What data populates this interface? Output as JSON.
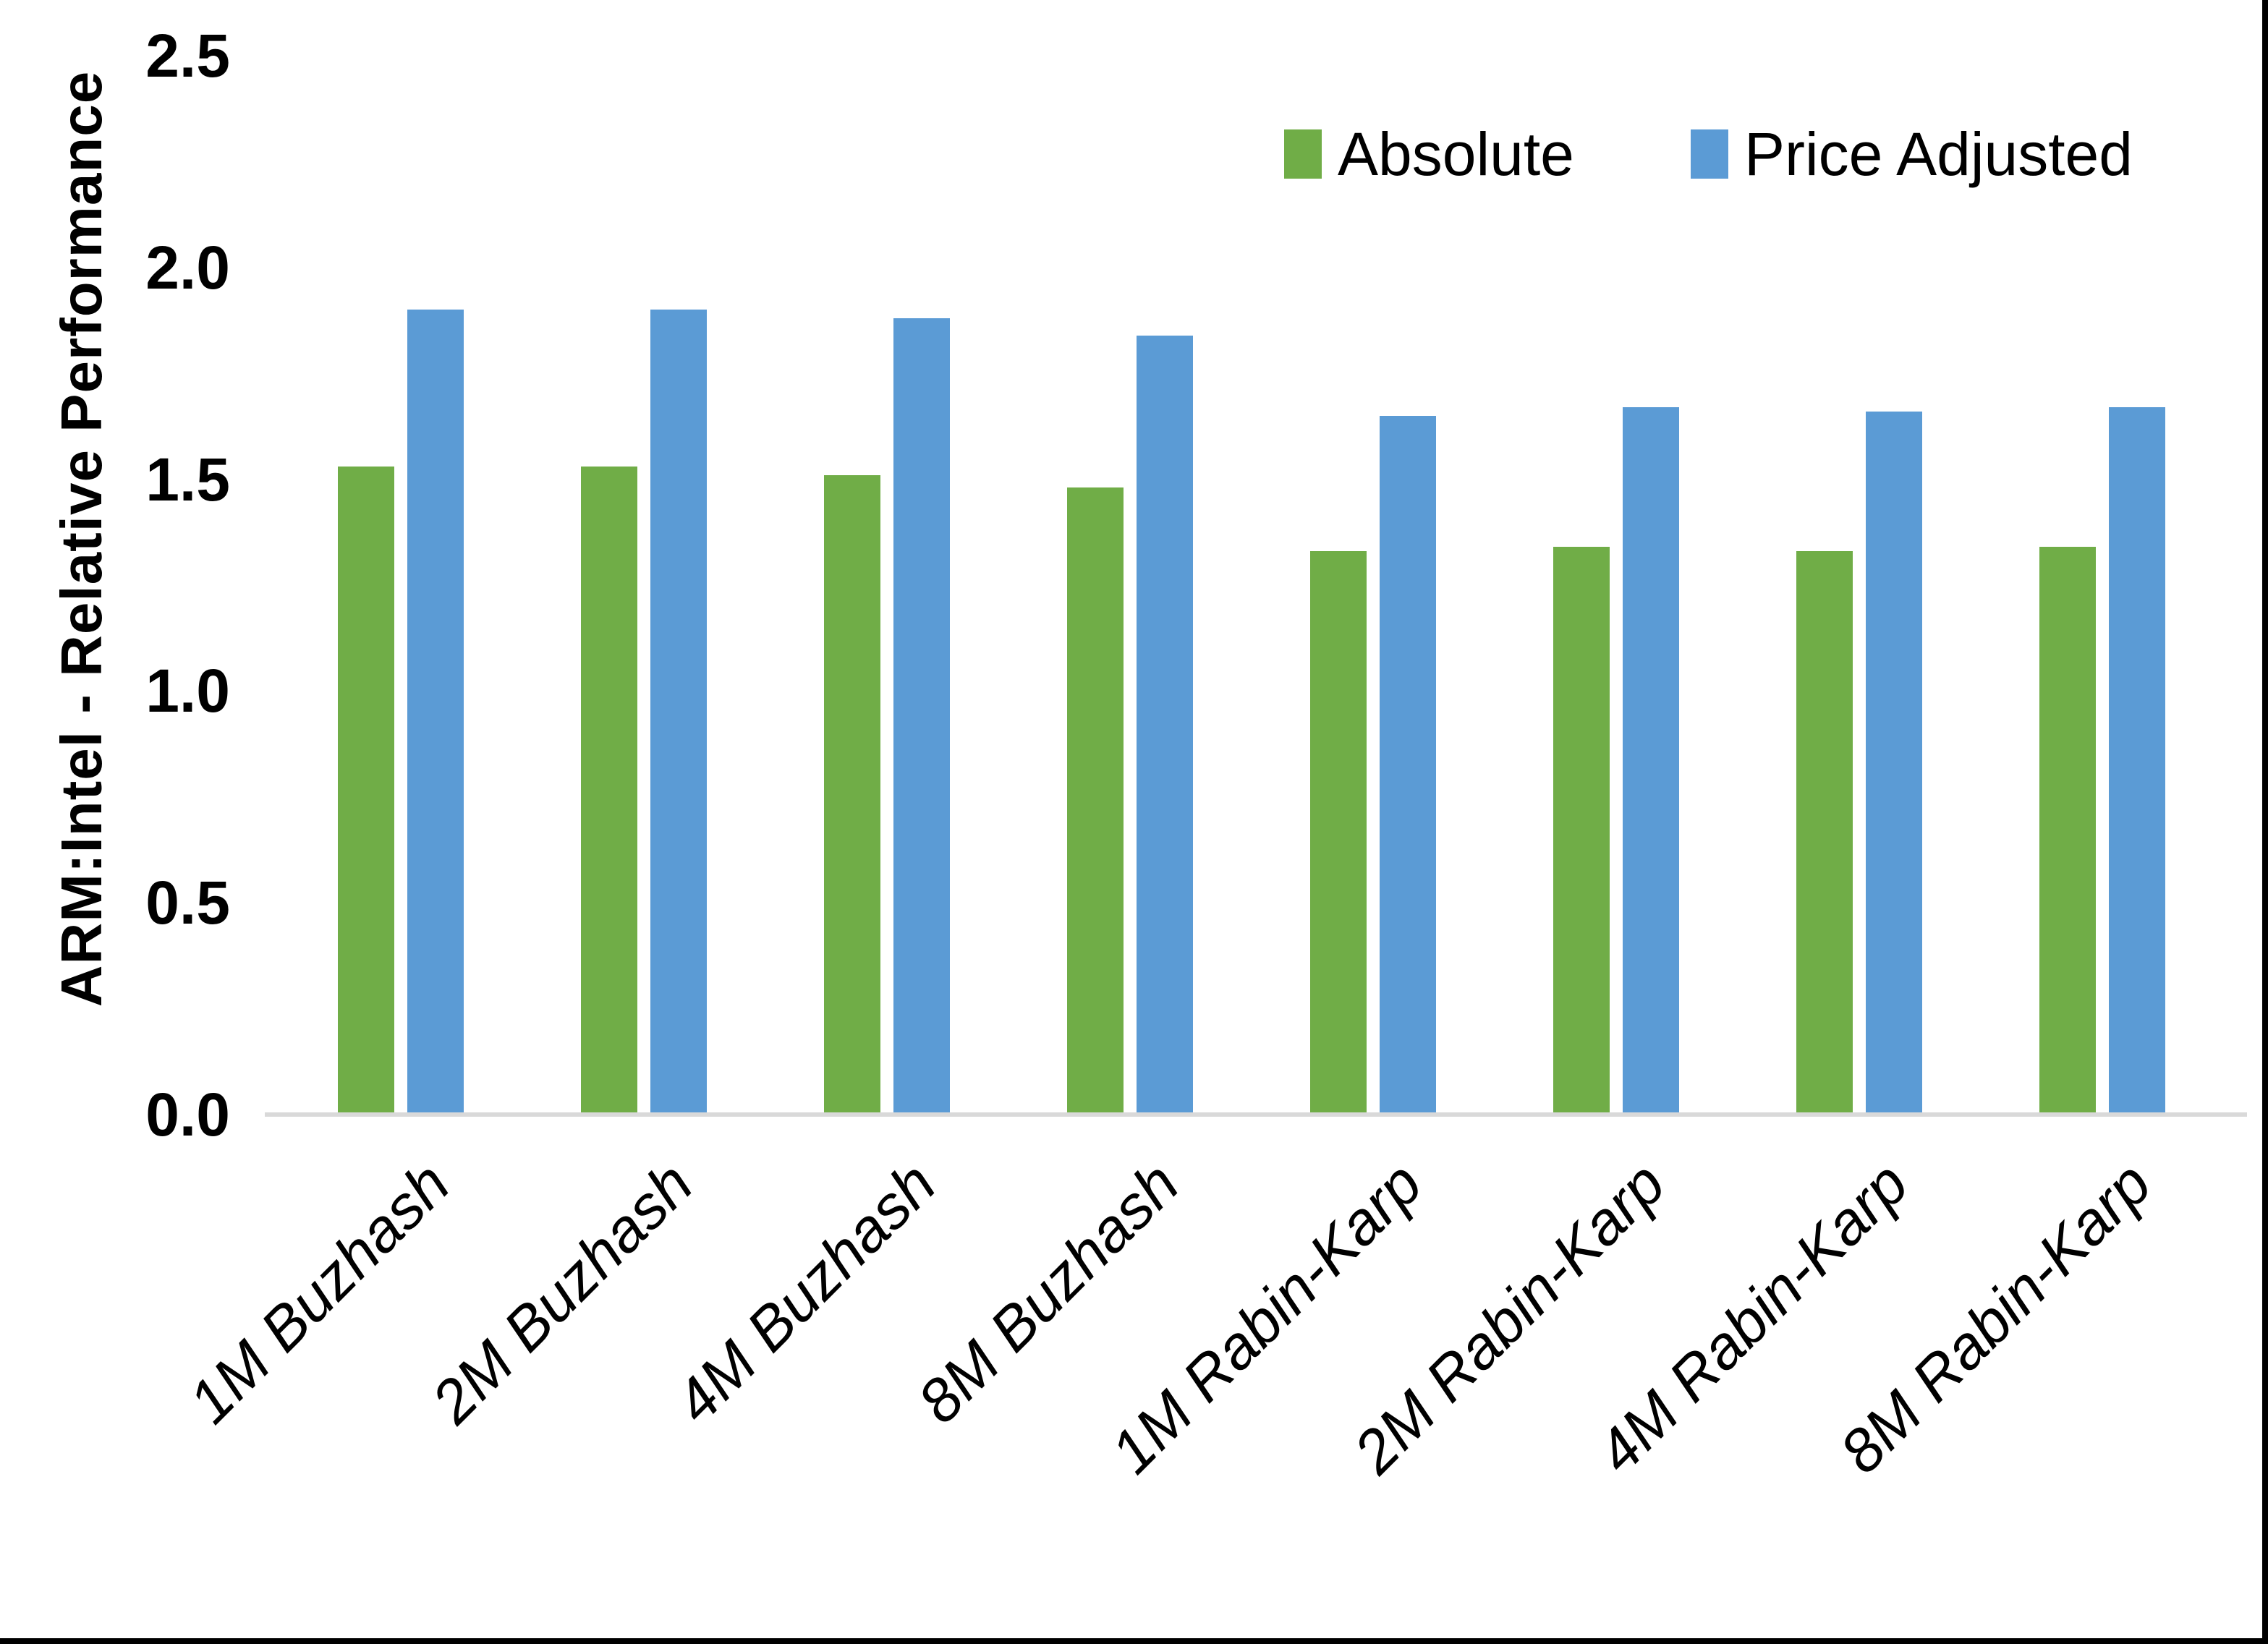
{
  "chart_data": {
    "type": "bar",
    "title": "",
    "xlabel": "",
    "ylabel": "ARM:Intel - Relative Performance",
    "ylim": [
      0,
      2.5
    ],
    "ytick_labels": [
      "2.5",
      "2.0",
      "1.5",
      "1.0",
      "0.5",
      "0.0"
    ],
    "grid": false,
    "legend_position": "top-right",
    "categories": [
      "1M Buzhash",
      "2M Buzhash",
      "4M Buzhash",
      "8M Buzhash",
      "1M Rabin-Karp",
      "2M Rabin-Karp",
      "4M Rabin-Karp",
      "8M Rabin-Karp"
    ],
    "series": [
      {
        "name": "Absolute",
        "color": "#70AD47",
        "values": [
          1.53,
          1.53,
          1.51,
          1.48,
          1.33,
          1.34,
          1.33,
          1.34
        ]
      },
      {
        "name": "Price Adjusted",
        "color": "#5B9BD5",
        "values": [
          1.9,
          1.9,
          1.88,
          1.84,
          1.65,
          1.67,
          1.66,
          1.67
        ]
      }
    ]
  },
  "colors": {
    "baseline": "#D9D9D9",
    "text": "#000000",
    "frame_border": "#000000"
  }
}
